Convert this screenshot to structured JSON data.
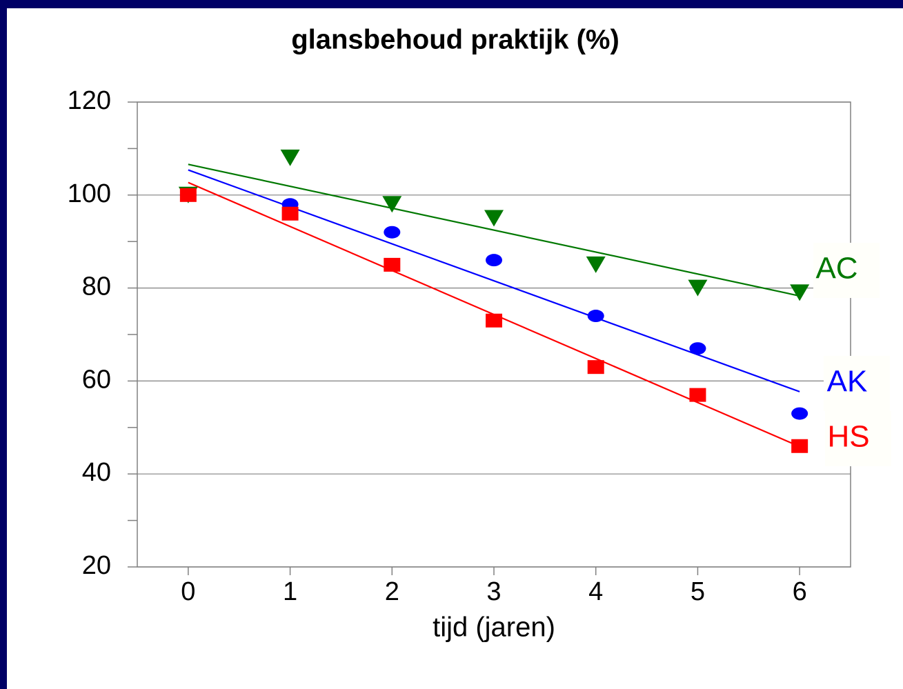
{
  "chart_data": {
    "type": "scatter",
    "title": "glansbehoud praktijk (%)",
    "x_label": "tijd (jaren)",
    "x": [
      0,
      1,
      2,
      3,
      4,
      5,
      6
    ],
    "series": [
      {
        "name": "AC",
        "color": "#007800",
        "marker": "triangle-down",
        "values": [
          100,
          108,
          98,
          95,
          85,
          80,
          79
        ],
        "trend": {
          "x": [
            0,
            6
          ],
          "y": [
            106.6,
            78.3
          ]
        }
      },
      {
        "name": "AK",
        "color": "#0000ff",
        "marker": "circle",
        "values": [
          100,
          98,
          92,
          86,
          74,
          67,
          53
        ],
        "trend": {
          "x": [
            0,
            6
          ],
          "y": [
            105.4,
            57.7
          ]
        }
      },
      {
        "name": "HS",
        "color": "#ff0000",
        "marker": "square",
        "values": [
          100,
          96,
          85,
          73,
          63,
          57,
          46
        ],
        "trend": {
          "x": [
            0,
            6
          ],
          "y": [
            102.7,
            45.9
          ]
        }
      }
    ],
    "xlim": [
      -0.5,
      6.5
    ],
    "xticks": [
      0,
      1,
      2,
      3,
      4,
      5,
      6
    ],
    "ylim": [
      20,
      120
    ],
    "yticks": [
      20,
      40,
      60,
      80,
      100,
      120
    ],
    "yminorticks": [
      30,
      50,
      70,
      90,
      110
    ],
    "grid": true
  }
}
